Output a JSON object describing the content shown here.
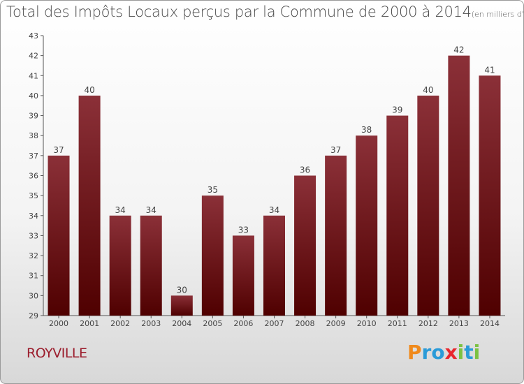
{
  "header": {
    "title": "Total des Impôts Locaux perçus par la Commune de 2000 à 2014",
    "unit": "(en milliers d'€)"
  },
  "footer": {
    "commune": "ROYVILLE",
    "logo_letters": [
      "P",
      "r",
      "o",
      "x",
      "i",
      "t",
      "i"
    ]
  },
  "colors": {
    "bar_top": "#8b3038",
    "bar_bottom": "#4f0000",
    "commune": "#9b1c2c",
    "logo": [
      "#f08a1c",
      "#2a9bd8",
      "#2a9bd8",
      "#e8262d",
      "#7cc242",
      "#2a9bd8",
      "#7cc242"
    ]
  },
  "chart_data": {
    "type": "bar",
    "title": "Total des Impôts Locaux perçus par la Commune de 2000 à 2014",
    "categories": [
      "2000",
      "2001",
      "2002",
      "2003",
      "2004",
      "2005",
      "2006",
      "2007",
      "2008",
      "2009",
      "2010",
      "2011",
      "2012",
      "2013",
      "2014"
    ],
    "values": [
      37,
      40,
      34,
      34,
      30,
      35,
      33,
      34,
      36,
      37,
      38,
      39,
      40,
      42,
      41
    ],
    "xlabel": "",
    "ylabel": "",
    "ylim": [
      29,
      43
    ],
    "yticks": [
      29,
      30,
      31,
      32,
      33,
      34,
      35,
      36,
      37,
      38,
      39,
      40,
      41,
      42,
      43
    ],
    "grid": false,
    "data_labels": true
  }
}
